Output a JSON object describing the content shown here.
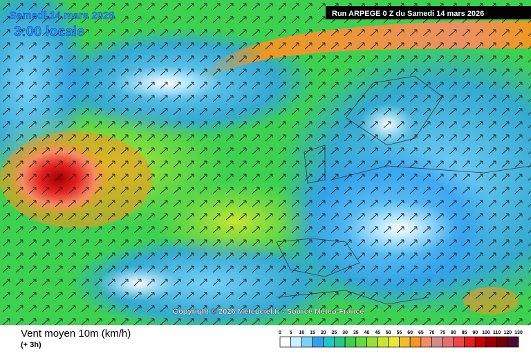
{
  "header": {
    "date": "Samedi 14 mars 2026",
    "time": "3:00 locale",
    "run": "Run ARPEGE 0 Z du Samedi 14 mars 2026"
  },
  "copyright": "Copyright © 2026 Meteociel.fr - Source Meteo-France",
  "footer": {
    "title": "Vent moyen 10m (km/h)",
    "step": "(+ 3h)"
  },
  "legend": {
    "labels": [
      0,
      5,
      10,
      15,
      20,
      25,
      30,
      35,
      40,
      45,
      50,
      55,
      60,
      65,
      70,
      75,
      80,
      85,
      90,
      100,
      110,
      120,
      130
    ],
    "colors": [
      "#ffffff",
      "#c8f0ff",
      "#78d2fa",
      "#32a0f0",
      "#1ec8c8",
      "#28c88c",
      "#3cd250",
      "#64dc3c",
      "#96e132",
      "#c8e632",
      "#f0e632",
      "#f5be28",
      "#f5961e",
      "#f58c64",
      "#d28c8c",
      "#e66e6e",
      "#f04646",
      "#e61e1e",
      "#c80000",
      "#a00000",
      "#780000",
      "#500a32"
    ]
  }
}
